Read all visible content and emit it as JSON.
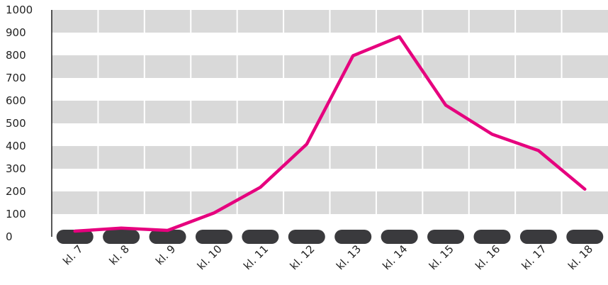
{
  "chart_data": {
    "type": "line",
    "categories": [
      "kl. 7",
      "kl. 8",
      "kl. 9",
      "kl. 10",
      "kl. 11",
      "kl. 12",
      "kl. 13",
      "kl. 14",
      "kl. 15",
      "kl. 16",
      "kl. 17",
      "kl. 18"
    ],
    "series": [
      {
        "values": [
          25,
          38,
          28,
          105,
          218,
          408,
          798,
          882,
          580,
          452,
          380,
          210
        ],
        "color": "#e6007e"
      },
      {
        "values": [
          0,
          0,
          0,
          0,
          0,
          0,
          0,
          0,
          0,
          0,
          0,
          0
        ],
        "color": "#3a3a3d",
        "style": "thick-dashed"
      }
    ],
    "ylim": [
      0,
      1000
    ],
    "yticks": [
      0,
      100,
      200,
      300,
      400,
      500,
      600,
      700,
      800,
      900,
      1000
    ],
    "ytick_labels": [
      "0",
      "100",
      "200",
      "300",
      "400",
      "500",
      "600",
      "700",
      "800",
      "900",
      "1000"
    ],
    "title": "",
    "xlabel": "",
    "ylabel": "",
    "grid": "horizontal alternating bands",
    "band_color": "#d9d9d9",
    "legend": "none"
  }
}
